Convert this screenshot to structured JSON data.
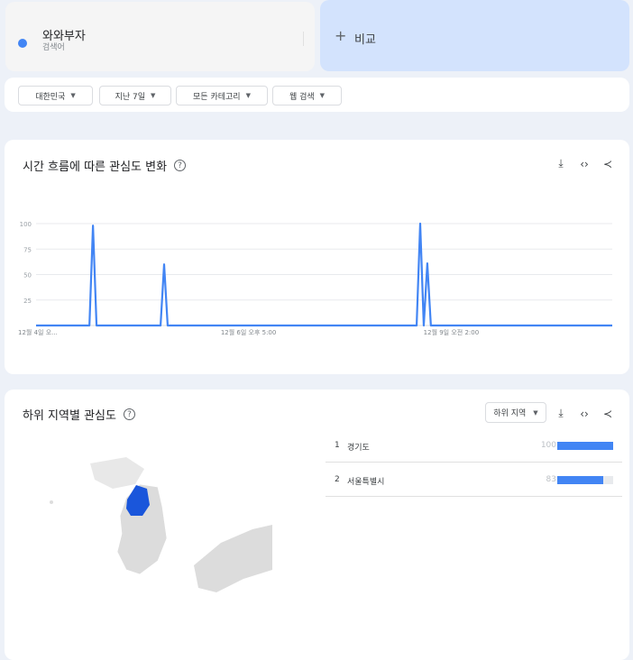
{
  "term": {
    "name": "와와부자",
    "type": "검색어",
    "color": "#4285f4"
  },
  "compare": {
    "label": "비교",
    "color": "#d3e3fd"
  },
  "filters": [
    {
      "label": "대한민국"
    },
    {
      "label": "지난 7일"
    },
    {
      "label": "모든 카테고리"
    },
    {
      "label": "웹 검색"
    }
  ],
  "interest_over_time": {
    "title": "시간 흐름에 따른 관심도 변화",
    "icons": [
      "download-icon",
      "embed-icon",
      "share-icon"
    ]
  },
  "chart_data": {
    "type": "line",
    "yticks": [
      100,
      75,
      50,
      25
    ],
    "ylim": [
      0,
      100
    ],
    "xtick_labels": [
      {
        "index": 0,
        "label": "12월 4일 오..."
      },
      {
        "index": 57,
        "label": "12월 6일 오후 5:00"
      },
      {
        "index": 114,
        "label": "12월 9일 오전 2:00"
      }
    ],
    "grid": true,
    "color": "#4285f4",
    "values": [
      0,
      0,
      0,
      0,
      0,
      0,
      0,
      0,
      0,
      0,
      0,
      0,
      0,
      0,
      0,
      0,
      98,
      0,
      0,
      0,
      0,
      0,
      0,
      0,
      0,
      0,
      0,
      0,
      0,
      0,
      0,
      0,
      0,
      0,
      0,
      0,
      60,
      0,
      0,
      0,
      0,
      0,
      0,
      0,
      0,
      0,
      0,
      0,
      0,
      0,
      0,
      0,
      0,
      0,
      0,
      0,
      0,
      0,
      0,
      0,
      0,
      0,
      0,
      0,
      0,
      0,
      0,
      0,
      0,
      0,
      0,
      0,
      0,
      0,
      0,
      0,
      0,
      0,
      0,
      0,
      0,
      0,
      0,
      0,
      0,
      0,
      0,
      0,
      0,
      0,
      0,
      0,
      0,
      0,
      0,
      0,
      0,
      0,
      0,
      0,
      0,
      0,
      0,
      0,
      0,
      0,
      0,
      0,
      100,
      0,
      61,
      0,
      0,
      0,
      0,
      0,
      0,
      0,
      0,
      0,
      0,
      0,
      0,
      0,
      0,
      0,
      0,
      0,
      0,
      0,
      0,
      0,
      0,
      0,
      0,
      0,
      0,
      0,
      0,
      0,
      0,
      0,
      0,
      0,
      0,
      0,
      0,
      0,
      0,
      0,
      0,
      0,
      0,
      0,
      0,
      0,
      0,
      0,
      0,
      0,
      0,
      0,
      0
    ]
  },
  "interest_by_region": {
    "title": "하위 지역별 관심도",
    "selector": "하위 지역",
    "rows": [
      {
        "rank": "1",
        "name": "경기도",
        "value": 100
      },
      {
        "rank": "2",
        "name": "서울특별시",
        "value": 83
      }
    ],
    "highlight_color": "#1a56db"
  }
}
